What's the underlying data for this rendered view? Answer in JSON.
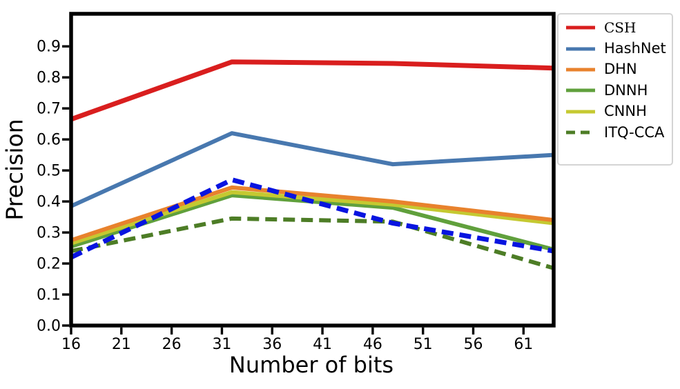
{
  "figure": {
    "background": "#ffffff",
    "axis_color": "#000000",
    "legend_border_color": "#d4d4d4"
  },
  "chart_data": {
    "type": "line",
    "title": "",
    "xlabel": "Number of bits",
    "ylabel": "Precision",
    "x": [
      16,
      32,
      48,
      64
    ],
    "xticks": [
      16,
      21,
      26,
      31,
      36,
      41,
      46,
      51,
      56,
      61
    ],
    "yticks": [
      0.0,
      0.1,
      0.2,
      0.3,
      0.4,
      0.5,
      0.6,
      0.7,
      0.8,
      0.9
    ],
    "xlim": [
      16,
      64
    ],
    "ylim": [
      0,
      1.005
    ],
    "grid": false,
    "legend_position": "outside upper right",
    "series": [
      {
        "id": "csh",
        "name": "CSH",
        "values": [
          0.665,
          0.85,
          0.845,
          0.83
        ],
        "color": "#d91e1e",
        "dash": false,
        "width": 7,
        "z": 6,
        "in_legend": true,
        "label_font": "serif"
      },
      {
        "id": "hashnet",
        "name": "HashNet",
        "values": [
          0.385,
          0.62,
          0.52,
          0.55
        ],
        "color": "#4878af",
        "dash": false,
        "width": 6,
        "z": 5,
        "in_legend": true,
        "label_font": "sans"
      },
      {
        "id": "dhn",
        "name": "DHN",
        "values": [
          0.275,
          0.445,
          0.4,
          0.34
        ],
        "color": "#e8822d",
        "dash": false,
        "width": 6,
        "z": 4,
        "in_legend": true,
        "label_font": "sans"
      },
      {
        "id": "dnnh",
        "name": "DNNH",
        "values": [
          0.255,
          0.42,
          0.38,
          0.245
        ],
        "color": "#60a03c",
        "dash": false,
        "width": 6,
        "z": 2,
        "in_legend": true,
        "label_font": "sans"
      },
      {
        "id": "cnnh",
        "name": "CNNH",
        "values": [
          0.265,
          0.43,
          0.39,
          0.33
        ],
        "color": "#c5c931",
        "dash": false,
        "width": 6,
        "z": 3,
        "in_legend": true,
        "label_font": "sans"
      },
      {
        "id": "itq-cca",
        "name": "ITQ-CCA",
        "values": [
          0.24,
          0.345,
          0.335,
          0.185
        ],
        "color": "#4d7d26",
        "dash": true,
        "width": 6,
        "z": 1,
        "in_legend": true,
        "label_font": "sans"
      },
      {
        "id": "blue-dashed",
        "name": "",
        "values": [
          0.22,
          0.47,
          0.33,
          0.24
        ],
        "color": "#0814e0",
        "dash": true,
        "width": 7,
        "z": 7,
        "in_legend": false,
        "label_font": "sans"
      }
    ]
  }
}
